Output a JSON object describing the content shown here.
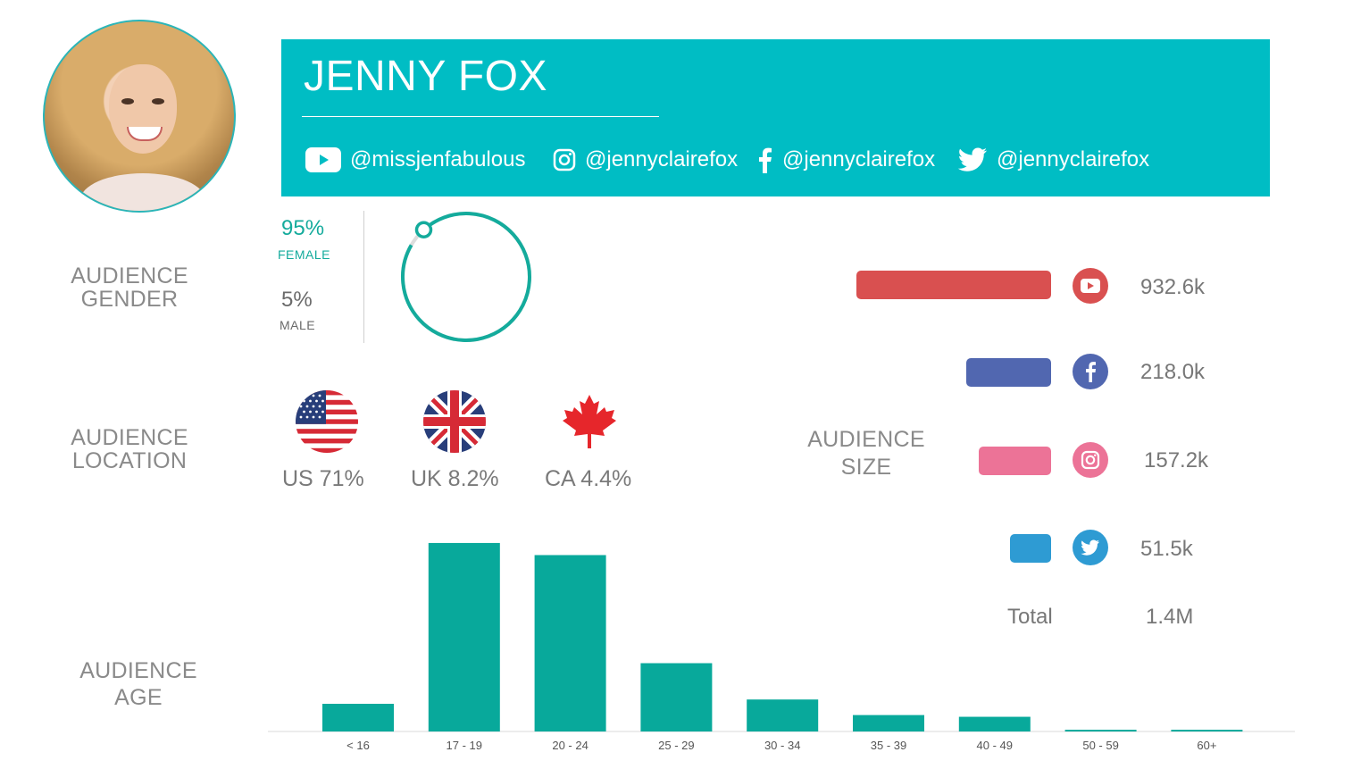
{
  "profile": {
    "name": "JENNY FOX",
    "handles": [
      {
        "platform": "youtube",
        "icon": "youtube-icon",
        "text": "@missjenfabulous"
      },
      {
        "platform": "instagram",
        "icon": "instagram-icon",
        "text": "@jennyclairefox"
      },
      {
        "platform": "facebook",
        "icon": "facebook-icon",
        "text": "@jennyclairefox"
      },
      {
        "platform": "twitter",
        "icon": "twitter-icon",
        "text": "@jennyclairefox"
      }
    ]
  },
  "sections": {
    "gender": [
      "AUDIENCE",
      "GENDER"
    ],
    "location": [
      "AUDIENCE",
      "LOCATION"
    ],
    "age": [
      "AUDIENCE",
      "AGE"
    ],
    "size": [
      "AUDIENCE",
      "SIZE"
    ]
  },
  "gender": {
    "female_pct": "95%",
    "female_label": "FEMALE",
    "male_pct": "5%",
    "male_label": "MALE",
    "female_fraction": 0.95,
    "female_color": "#14ab9c",
    "male_color": "#dddddd"
  },
  "location": [
    {
      "flag": "us-flag-icon",
      "text": "US 71%"
    },
    {
      "flag": "uk-flag-icon",
      "text": "UK 8.2%"
    },
    {
      "flag": "canada-flag-icon",
      "text": "CA 4.4%"
    }
  ],
  "audience_size": {
    "rows": [
      {
        "platform": "youtube",
        "icon": "youtube-icon",
        "value": 932.6,
        "label": "932.6k",
        "color": "#d95050"
      },
      {
        "platform": "facebook",
        "icon": "facebook-icon",
        "value": 218.0,
        "label": "218.0k",
        "color": "#5167b0"
      },
      {
        "platform": "instagram",
        "icon": "instagram-icon",
        "value": 157.2,
        "label": "157.2k",
        "color": "#ec7397"
      },
      {
        "platform": "twitter",
        "icon": "twitter-icon",
        "value": 51.5,
        "label": "51.5k",
        "color": "#2e9bd3"
      }
    ],
    "total_label": "Total",
    "total_value": "1.4M"
  },
  "chart_data": {
    "type": "bar",
    "categories": [
      "< 16",
      "17 - 19",
      "20 - 24",
      "25 - 29",
      "30 - 34",
      "35 - 39",
      "40 - 49",
      "50 - 59",
      "60+"
    ],
    "values": [
      3.2,
      21.8,
      20.4,
      7.9,
      3.7,
      1.9,
      1.7,
      0.2,
      0.2
    ],
    "ylim": [
      0,
      22
    ],
    "color": "#08a99b",
    "grid": false
  }
}
